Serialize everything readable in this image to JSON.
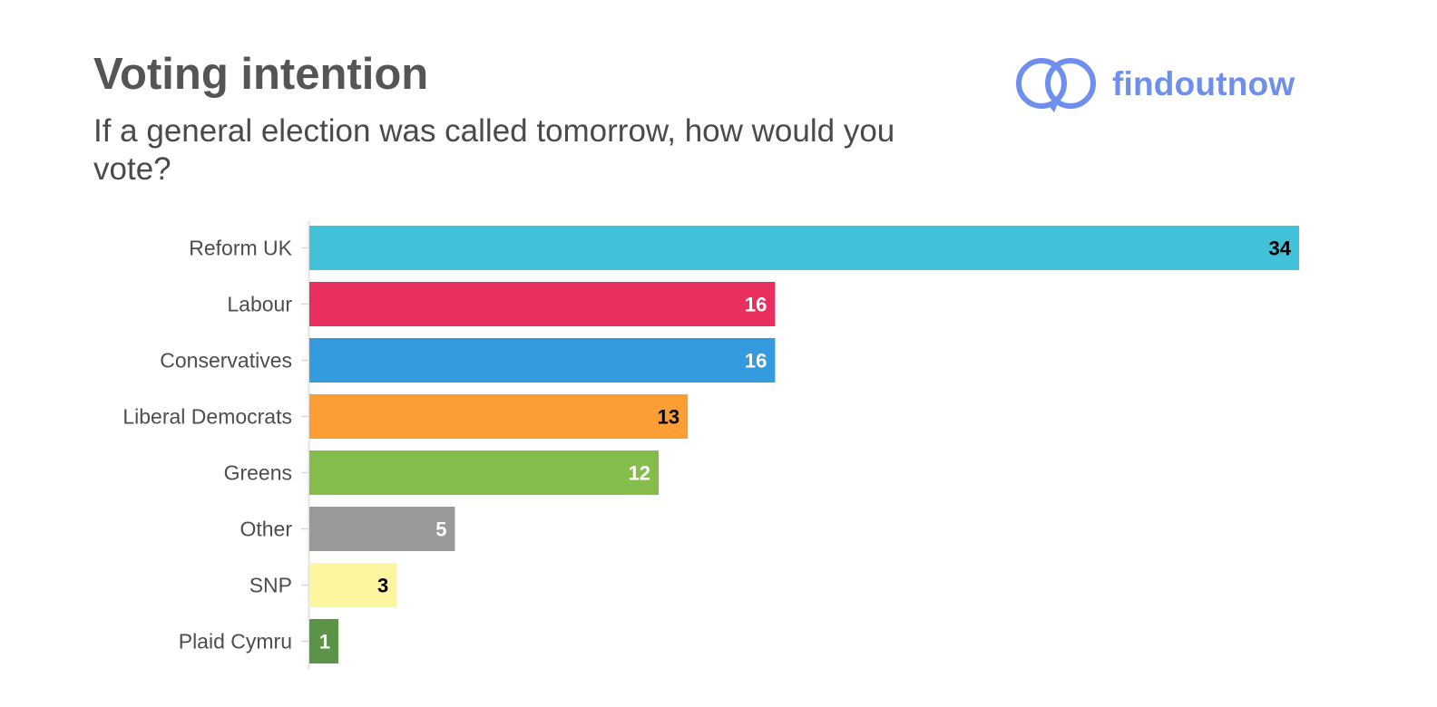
{
  "header": {
    "title": "Voting intention",
    "subtitle": "If a general election was called tomorrow, how would you vote?"
  },
  "logo": {
    "text": "findoutnow",
    "icon": "interlocking-speech-bubbles-icon",
    "color": "#6f8fef"
  },
  "chart_data": {
    "type": "bar",
    "orientation": "horizontal",
    "categories": [
      "Reform UK",
      "Labour",
      "Conservatives",
      "Liberal Democrats",
      "Greens",
      "Other",
      "SNP",
      "Plaid Cymru"
    ],
    "values": [
      34,
      16,
      16,
      13,
      12,
      5,
      3,
      1
    ],
    "colors": [
      "#41c2d8",
      "#e92f5e",
      "#349bdf",
      "#fd9e34",
      "#84bd4b",
      "#999999",
      "#fdf6a1",
      "#5b9349"
    ],
    "label_colors": [
      "#000000",
      "#ffffff",
      "#ffffff",
      "#000000",
      "#ffffff",
      "#ffffff",
      "#000000",
      "#ffffff"
    ],
    "title": "",
    "xlabel": "",
    "ylabel": "",
    "xlim": [
      0,
      34
    ],
    "grid": false,
    "legend": "none"
  }
}
